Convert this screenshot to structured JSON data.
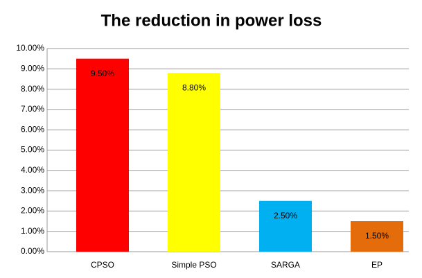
{
  "chart_data": {
    "type": "bar",
    "title": "The reduction in power loss",
    "categories": [
      "CPSO",
      "Simple PSO",
      "SARGA",
      "EP"
    ],
    "values": [
      9.5,
      8.8,
      2.5,
      1.5
    ],
    "value_labels": [
      "9.50%",
      "8.80%",
      "2.50%",
      "1.50%"
    ],
    "colors": [
      "#ff0000",
      "#ffff00",
      "#00b0f0",
      "#e46c0a"
    ],
    "ylim": [
      0,
      10
    ],
    "yticks": [
      {
        "value": 0,
        "label": "0.00%"
      },
      {
        "value": 1,
        "label": "1.00%"
      },
      {
        "value": 2,
        "label": "2.00%"
      },
      {
        "value": 3,
        "label": "3.00%"
      },
      {
        "value": 4,
        "label": "4.00%"
      },
      {
        "value": 5,
        "label": "5.00%"
      },
      {
        "value": 6,
        "label": "6.00%"
      },
      {
        "value": 7,
        "label": "7.00%"
      },
      {
        "value": 8,
        "label": "8.00%"
      },
      {
        "value": 9,
        "label": "9.00%"
      },
      {
        "value": 10,
        "label": "10.00%"
      }
    ],
    "grid": true
  }
}
